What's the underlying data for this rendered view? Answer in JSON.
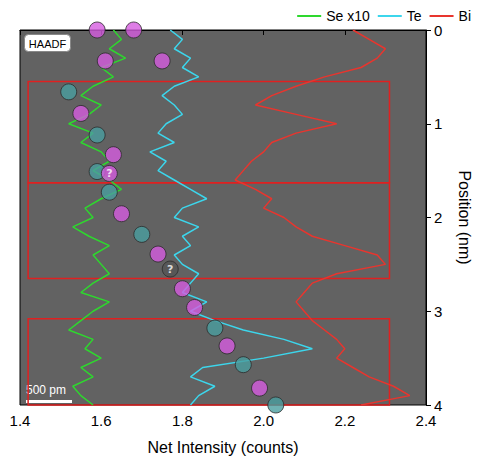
{
  "chart_data": {
    "type": "line",
    "image_label": "HAADF",
    "scale_bar": "500 pm",
    "x_label": "Net Intensity (counts)",
    "y_label": "Position (nm)",
    "xlim": [
      1.4,
      2.4
    ],
    "xticks": [
      1.4,
      1.6,
      1.8,
      {
        "value": 2,
        "label": "2.0"
      },
      2.2,
      2.4
    ],
    "ylim": [
      0,
      4
    ],
    "yticks": [
      0,
      1,
      2,
      3,
      4
    ],
    "grid": false,
    "legend": "top",
    "y": [
      0,
      0.1,
      0.2,
      0.3,
      0.4,
      0.5,
      0.6,
      0.7,
      0.8,
      0.9,
      1.0,
      1.1,
      1.2,
      1.3,
      1.4,
      1.5,
      1.6,
      1.7,
      1.8,
      1.9,
      2.0,
      2.1,
      2.2,
      2.3,
      2.4,
      2.5,
      2.6,
      2.7,
      2.8,
      2.9,
      3.0,
      3.1,
      3.2,
      3.3,
      3.4,
      3.5,
      3.6,
      3.7,
      3.8,
      3.9,
      4.0
    ],
    "series": [
      {
        "name": "Se x10",
        "color": "#2ed82e",
        "values": [
          1.63,
          1.65,
          1.62,
          1.66,
          1.6,
          1.63,
          1.58,
          1.55,
          1.6,
          1.57,
          1.52,
          1.58,
          1.55,
          1.6,
          1.62,
          1.58,
          1.62,
          1.65,
          1.6,
          1.56,
          1.58,
          1.53,
          1.57,
          1.62,
          1.58,
          1.6,
          1.62,
          1.58,
          1.55,
          1.62,
          1.58,
          1.55,
          1.52,
          1.58,
          1.56,
          1.6,
          1.55,
          1.58,
          1.53,
          1.55,
          1.58
        ]
      },
      {
        "name": "Te",
        "color": "#3cd6ec",
        "values": [
          1.77,
          1.8,
          1.78,
          1.82,
          1.8,
          1.84,
          1.78,
          1.75,
          1.78,
          1.8,
          1.76,
          1.74,
          1.78,
          1.72,
          1.76,
          1.74,
          1.78,
          1.82,
          1.86,
          1.8,
          1.78,
          1.84,
          1.8,
          1.82,
          1.78,
          1.8,
          1.84,
          1.82,
          1.8,
          1.86,
          1.82,
          1.88,
          1.95,
          2.05,
          2.12,
          2.0,
          1.85,
          1.82,
          1.88,
          1.84,
          1.82
        ]
      },
      {
        "name": "Bi",
        "color": "#e8352e",
        "values": [
          2.22,
          2.26,
          2.3,
          2.28,
          2.24,
          2.15,
          2.08,
          2.02,
          1.98,
          2.08,
          2.18,
          2.08,
          2.02,
          2.0,
          1.97,
          1.95,
          1.93,
          1.98,
          2.02,
          2.0,
          2.05,
          2.08,
          2.12,
          2.2,
          2.28,
          2.3,
          2.18,
          2.12,
          2.1,
          2.08,
          2.1,
          2.12,
          2.15,
          2.18,
          2.2,
          2.18,
          2.22,
          2.26,
          2.32,
          2.36,
          2.24
        ]
      }
    ],
    "atoms": {
      "x": [
        1.59,
        1.68,
        1.61,
        1.75,
        1.52,
        1.55,
        1.59,
        1.63,
        1.59,
        1.62,
        1.62,
        1.65,
        1.7,
        1.74,
        1.77,
        1.8,
        1.83,
        1.88,
        1.91,
        1.95,
        1.99,
        2.03
      ],
      "y": [
        0.0,
        0.0,
        0.33,
        0.33,
        0.66,
        0.89,
        1.12,
        1.33,
        1.51,
        1.53,
        1.73,
        1.96,
        2.18,
        2.39,
        2.55,
        2.76,
        2.96,
        3.18,
        3.37,
        3.57,
        3.82,
        4.0
      ],
      "colors": [
        "#d65ce0",
        "#d65ce0",
        "#d65ce0",
        "#d65ce0",
        "#4a9fa0",
        "#d65ce0",
        "#4a9fa0",
        "#d65ce0",
        "#4a9fa0",
        "#d65ce0",
        "#4a9fa0",
        "#d65ce0",
        "#4a9fa0",
        "#d65ce0",
        "#555555",
        "#d65ce0",
        "#d65ce0",
        "#4a9fa0",
        "#d65ce0",
        "#4a9fa0",
        "#d65ce0",
        "#4a9fa0"
      ],
      "labels": [
        null,
        null,
        null,
        null,
        null,
        null,
        null,
        null,
        null,
        "?",
        null,
        null,
        null,
        null,
        "?",
        null,
        null,
        null,
        null,
        null,
        null,
        null
      ]
    },
    "boxes": {
      "color": "#e02020",
      "x": [
        [
          1.42,
          2.31
        ],
        [
          1.42,
          2.31
        ],
        [
          1.42,
          2.31
        ]
      ],
      "y": [
        [
          0.55,
          1.63
        ],
        [
          1.63,
          2.65
        ],
        [
          3.08,
          4.08
        ]
      ]
    }
  }
}
